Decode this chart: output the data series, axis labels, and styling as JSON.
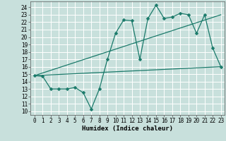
{
  "xlabel": "Humidex (Indice chaleur)",
  "bg_color": "#c8e0dc",
  "grid_color": "#ffffff",
  "line_color": "#1a7a6a",
  "x_ticks": [
    0,
    1,
    2,
    3,
    4,
    5,
    6,
    7,
    8,
    9,
    10,
    11,
    12,
    13,
    14,
    15,
    16,
    17,
    18,
    19,
    20,
    21,
    22,
    23
  ],
  "y_ticks": [
    10,
    11,
    12,
    13,
    14,
    15,
    16,
    17,
    18,
    19,
    20,
    21,
    22,
    23,
    24
  ],
  "ylim": [
    9.5,
    24.8
  ],
  "xlim": [
    -0.5,
    23.5
  ],
  "line1_x": [
    0,
    1,
    2,
    3,
    4,
    5,
    6,
    7,
    8,
    9,
    10,
    11,
    12,
    13,
    14,
    15,
    16,
    17,
    18,
    19,
    20,
    21,
    22,
    23
  ],
  "line1_y": [
    14.8,
    14.7,
    13.0,
    13.0,
    13.0,
    13.2,
    12.5,
    10.3,
    13.0,
    17.0,
    20.5,
    22.3,
    22.2,
    17.0,
    22.5,
    24.3,
    22.5,
    22.7,
    23.2,
    23.0,
    20.5,
    23.0,
    18.5,
    16.0
  ],
  "line2_x": [
    0,
    23
  ],
  "line2_y": [
    14.8,
    23.0
  ],
  "line3_x": [
    0,
    23
  ],
  "line3_y": [
    14.8,
    16.0
  ],
  "tick_fontsize": 5.5,
  "xlabel_fontsize": 6.5,
  "marker_size": 2.5
}
